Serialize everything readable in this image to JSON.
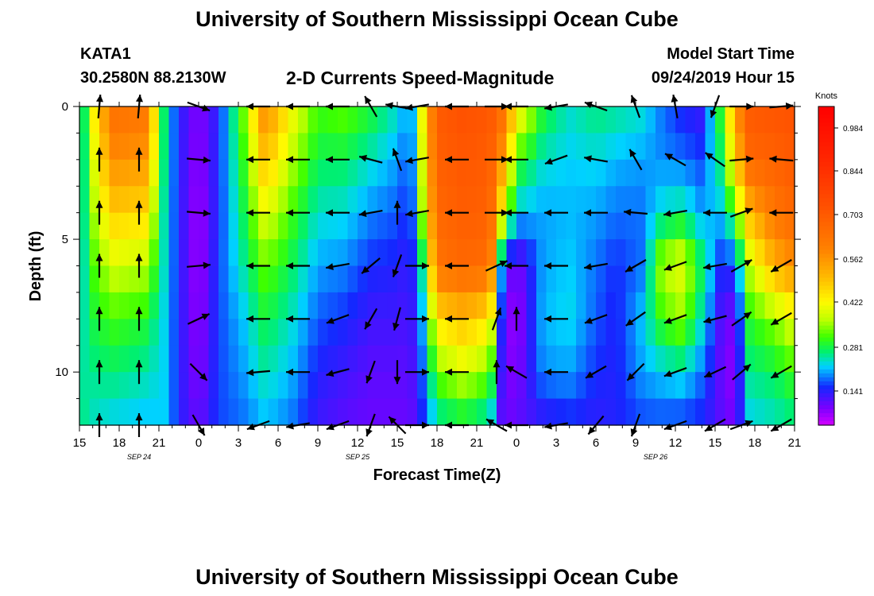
{
  "header": {
    "title": "University of Southern Mississippi Ocean Cube",
    "station": "KATA1",
    "coordinates": "30.2580N 88.2130W",
    "product": "2-D Currents Speed-Magnitude",
    "model_label": "Model Start Time",
    "model_time": "09/24/2019 Hour 15"
  },
  "footer": {
    "title": "University of Southern Mississippi Ocean Cube"
  },
  "chart_data": {
    "type": "heatmap",
    "xlabel": "Forecast Time(Z)",
    "ylabel": "Depth (ft)",
    "xlim": [
      0,
      54
    ],
    "ylim": [
      12,
      0
    ],
    "x_ticks": [
      {
        "h": 0,
        "label": "15"
      },
      {
        "h": 3,
        "label": "18"
      },
      {
        "h": 6,
        "label": "21"
      },
      {
        "h": 9,
        "label": "0"
      },
      {
        "h": 12,
        "label": "3"
      },
      {
        "h": 15,
        "label": "6"
      },
      {
        "h": 18,
        "label": "9"
      },
      {
        "h": 21,
        "label": "12"
      },
      {
        "h": 24,
        "label": "15"
      },
      {
        "h": 27,
        "label": "18"
      },
      {
        "h": 30,
        "label": "21"
      },
      {
        "h": 33,
        "label": "0"
      },
      {
        "h": 36,
        "label": "3"
      },
      {
        "h": 39,
        "label": "6"
      },
      {
        "h": 42,
        "label": "9"
      },
      {
        "h": 45,
        "label": "12"
      },
      {
        "h": 48,
        "label": "15"
      },
      {
        "h": 51,
        "label": "18"
      },
      {
        "h": 54,
        "label": "21"
      }
    ],
    "y_ticks": [
      {
        "v": 0,
        "label": "0"
      },
      {
        "v": 5,
        "label": "5"
      },
      {
        "v": 10,
        "label": "10"
      }
    ],
    "date_labels": [
      {
        "h": 4.5,
        "label": "SEP 24"
      },
      {
        "h": 21,
        "label": "SEP 25"
      },
      {
        "h": 43.5,
        "label": "SEP 26"
      }
    ],
    "colorbar": {
      "title": "Knots",
      "ticks": [
        "0.984",
        "0.844",
        "0.703",
        "0.562",
        "0.422",
        "0.281",
        "0.141"
      ],
      "max": 1.09
    },
    "speed_profile_by_hour": [
      [
        0,
        0.17,
        0.17,
        0.19,
        0.19,
        0.21,
        0.23,
        0.25
      ],
      [
        1,
        0.42,
        0.38,
        0.34,
        0.3,
        0.27,
        0.24,
        0.22
      ],
      [
        2.5,
        0.66,
        0.58,
        0.48,
        0.38,
        0.3,
        0.25,
        0.2
      ],
      [
        5,
        0.64,
        0.56,
        0.46,
        0.36,
        0.28,
        0.23,
        0.19
      ],
      [
        6.5,
        0.22,
        0.22,
        0.21,
        0.21,
        0.2,
        0.2,
        0.2
      ],
      [
        7.5,
        0.12,
        0.12,
        0.12,
        0.12,
        0.12,
        0.12,
        0.12
      ],
      [
        9,
        0.05,
        0.04,
        0.03,
        0.03,
        0.04,
        0.05,
        0.07
      ],
      [
        10.5,
        0.12,
        0.13,
        0.13,
        0.14,
        0.14,
        0.14,
        0.14
      ],
      [
        12.5,
        0.34,
        0.3,
        0.27,
        0.24,
        0.2,
        0.18,
        0.16
      ],
      [
        14,
        0.6,
        0.5,
        0.4,
        0.32,
        0.27,
        0.23,
        0.19
      ],
      [
        16,
        0.42,
        0.36,
        0.3,
        0.26,
        0.22,
        0.19,
        0.16
      ],
      [
        18,
        0.3,
        0.26,
        0.22,
        0.18,
        0.15,
        0.12,
        0.1
      ],
      [
        20,
        0.32,
        0.26,
        0.21,
        0.17,
        0.13,
        0.1,
        0.08
      ],
      [
        22,
        0.28,
        0.22,
        0.17,
        0.13,
        0.1,
        0.08,
        0.07
      ],
      [
        24,
        0.22,
        0.18,
        0.15,
        0.12,
        0.1,
        0.08,
        0.07
      ],
      [
        25,
        0.16,
        0.14,
        0.12,
        0.1,
        0.09,
        0.08,
        0.07
      ],
      [
        26,
        0.45,
        0.42,
        0.38,
        0.26,
        0.2,
        0.16,
        0.13
      ],
      [
        27,
        0.72,
        0.7,
        0.68,
        0.64,
        0.45,
        0.32,
        0.22
      ],
      [
        29,
        0.75,
        0.73,
        0.71,
        0.68,
        0.5,
        0.38,
        0.25
      ],
      [
        31,
        0.73,
        0.71,
        0.7,
        0.66,
        0.44,
        0.32,
        0.21
      ],
      [
        32,
        0.66,
        0.55,
        0.4,
        0.12,
        0.08,
        0.07,
        0.06
      ],
      [
        33,
        0.45,
        0.3,
        0.2,
        0.05,
        0.03,
        0.05,
        0.08
      ],
      [
        35,
        0.28,
        0.22,
        0.18,
        0.18,
        0.19,
        0.17,
        0.1
      ],
      [
        37,
        0.22,
        0.2,
        0.19,
        0.2,
        0.21,
        0.18,
        0.12
      ],
      [
        39,
        0.25,
        0.21,
        0.18,
        0.16,
        0.15,
        0.13,
        0.11
      ],
      [
        40.5,
        0.24,
        0.19,
        0.16,
        0.13,
        0.12,
        0.12,
        0.12
      ],
      [
        42.5,
        0.22,
        0.18,
        0.16,
        0.16,
        0.2,
        0.18,
        0.14
      ],
      [
        44,
        0.16,
        0.17,
        0.22,
        0.36,
        0.3,
        0.2,
        0.14
      ],
      [
        45.5,
        0.12,
        0.16,
        0.24,
        0.4,
        0.34,
        0.22,
        0.13
      ],
      [
        47,
        0.1,
        0.14,
        0.18,
        0.26,
        0.22,
        0.16,
        0.12
      ],
      [
        48.5,
        0.3,
        0.26,
        0.2,
        0.12,
        0.08,
        0.07,
        0.08
      ],
      [
        49.5,
        0.55,
        0.46,
        0.3,
        0.14,
        0.06,
        0.04,
        0.06
      ],
      [
        50.5,
        0.72,
        0.68,
        0.5,
        0.36,
        0.28,
        0.24,
        0.2
      ],
      [
        52.5,
        0.74,
        0.7,
        0.64,
        0.52,
        0.34,
        0.26,
        0.22
      ],
      [
        54,
        0.75,
        0.72,
        0.68,
        0.58,
        0.4,
        0.3,
        0.24
      ]
    ],
    "profile_depths_ft": [
      0,
      2,
      4,
      6,
      8,
      10,
      12
    ],
    "vectors": [
      {
        "h": 1.5,
        "dirs": [
          185,
          180,
          180,
          180,
          180,
          180,
          180
        ]
      },
      {
        "h": 4.5,
        "dirs": [
          185,
          180,
          180,
          180,
          180,
          180,
          180
        ]
      },
      {
        "h": 9,
        "dirs": [
          290,
          275,
          275,
          265,
          245,
          315,
          330
        ]
      },
      {
        "h": 13.5,
        "dirs": [
          90,
          90,
          90,
          90,
          90,
          85,
          70
        ]
      },
      {
        "h": 16.5,
        "dirs": [
          90,
          90,
          90,
          90,
          90,
          90,
          80
        ]
      },
      {
        "h": 19.5,
        "dirs": [
          90,
          90,
          90,
          80,
          70,
          75,
          70
        ]
      },
      {
        "h": 22,
        "dirs": [
          150,
          105,
          80,
          50,
          30,
          20,
          20
        ]
      },
      {
        "h": 24,
        "dirs": [
          100,
          160,
          180,
          20,
          15,
          0,
          135
        ]
      },
      {
        "h": 25.5,
        "dirs": [
          80,
          80,
          80,
          270,
          270,
          270,
          270
        ]
      },
      {
        "h": 28.5,
        "dirs": [
          90,
          90,
          90,
          90,
          90,
          90,
          90
        ]
      },
      {
        "h": 31.5,
        "dirs": [
          270,
          270,
          270,
          245,
          200,
          180,
          120
        ]
      },
      {
        "h": 33,
        "dirs": [
          90,
          90,
          90,
          90,
          180,
          120,
          90
        ]
      },
      {
        "h": 36,
        "dirs": [
          80,
          70,
          90,
          90,
          90,
          90,
          80
        ]
      },
      {
        "h": 39,
        "dirs": [
          110,
          100,
          90,
          80,
          70,
          60,
          40
        ]
      },
      {
        "h": 42,
        "dirs": [
          160,
          150,
          95,
          60,
          55,
          45,
          20
        ]
      },
      {
        "h": 45,
        "dirs": [
          170,
          120,
          80,
          70,
          70,
          70,
          70
        ]
      },
      {
        "h": 48,
        "dirs": [
          20,
          125,
          90,
          80,
          75,
          65,
          60
        ]
      },
      {
        "h": 50,
        "dirs": [
          270,
          265,
          250,
          240,
          235,
          230,
          250
        ]
      },
      {
        "h": 53,
        "dirs": [
          265,
          95,
          90,
          60,
          60,
          60,
          60
        ]
      }
    ]
  }
}
